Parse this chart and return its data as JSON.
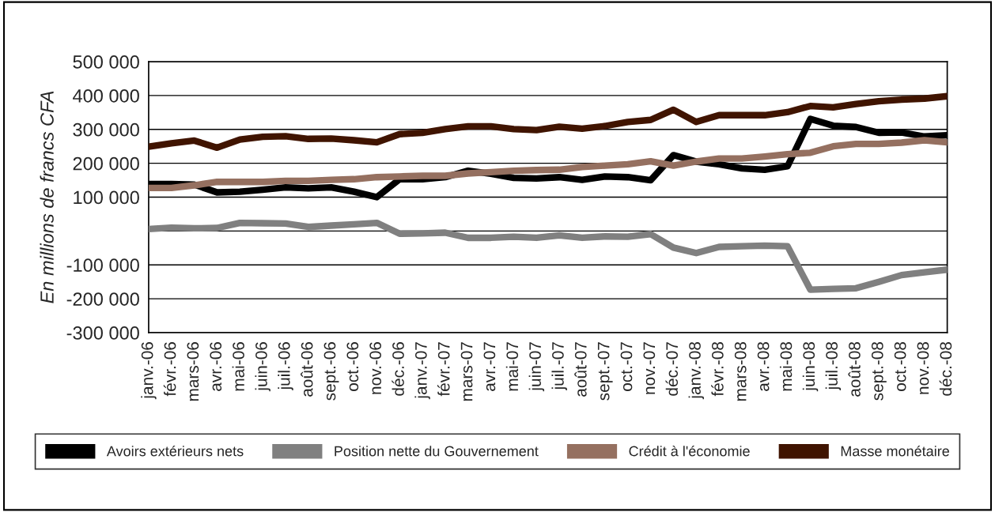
{
  "chart_data": {
    "type": "line",
    "ylabel": "En millions de francs CFA",
    "categories": [
      "janv.-06",
      "févr.-06",
      "mars-06",
      "avr.-06",
      "mai-06",
      "juin-06",
      "juil.-06",
      "août-06",
      "sept.-06",
      "oct.-06",
      "nov.-06",
      "déc.-06",
      "janv.-07",
      "févr.-07",
      "mars-07",
      "avr.-07",
      "mai-07",
      "juin-07",
      "juil.-07",
      "août-07",
      "sept.-07",
      "oct.-07",
      "nov.-07",
      "déc.-07",
      "janv.-08",
      "févr.-08",
      "mars-08",
      "avr.-08",
      "mai-08",
      "juin-08",
      "juil.-08",
      "août-08",
      "sept.-08",
      "oct.-08",
      "nov.-08",
      "déc.-08"
    ],
    "series": [
      {
        "name": "Avoirs extérieurs nets",
        "color": "#000000",
        "values": [
          139000,
          139000,
          137000,
          114000,
          116000,
          122000,
          129000,
          126000,
          129000,
          116000,
          100000,
          153000,
          153000,
          159000,
          178000,
          169000,
          157000,
          155000,
          159000,
          151000,
          161000,
          159000,
          150000,
          224000,
          205000,
          197000,
          185000,
          181000,
          191000,
          331000,
          311000,
          307000,
          290000,
          291000,
          279000,
          283000
        ]
      },
      {
        "name": "Position nette du Gouvernement",
        "color": "#808080",
        "values": [
          6000,
          10000,
          8000,
          9000,
          24000,
          23000,
          22000,
          12000,
          16000,
          20000,
          24000,
          -8000,
          -7000,
          -5000,
          -20000,
          -20000,
          -17000,
          -20000,
          -13000,
          -20000,
          -16000,
          -17000,
          -9000,
          -49000,
          -65000,
          -47000,
          -45000,
          -43000,
          -45000,
          -173000,
          -171000,
          -169000,
          -150000,
          -130000,
          -122000,
          -114000
        ]
      },
      {
        "name": "Crédit à l'économie",
        "color": "#957060",
        "values": [
          127000,
          127000,
          135000,
          145000,
          145000,
          145000,
          148000,
          148000,
          151000,
          153000,
          159000,
          161000,
          163000,
          163000,
          170000,
          174000,
          178000,
          180000,
          181000,
          189000,
          193000,
          197000,
          206000,
          193000,
          205000,
          214000,
          214000,
          220000,
          227000,
          231000,
          250000,
          257000,
          257000,
          261000,
          268000,
          262000
        ]
      },
      {
        "name": "Masse monétaire",
        "color": "#401400",
        "values": [
          249000,
          259000,
          267000,
          246000,
          270000,
          278000,
          280000,
          272000,
          273000,
          268000,
          262000,
          286000,
          290000,
          301000,
          309000,
          309000,
          301000,
          298000,
          308000,
          302000,
          310000,
          322000,
          328000,
          358000,
          322000,
          342000,
          342000,
          342000,
          351000,
          369000,
          365000,
          375000,
          383000,
          388000,
          391000,
          398000
        ]
      }
    ],
    "ylim": [
      -300000,
      500000
    ],
    "yticks": [
      {
        "value": -300000,
        "label": "-300 000"
      },
      {
        "value": -200000,
        "label": "-200 000"
      },
      {
        "value": -100000,
        "label": "-100 000"
      },
      {
        "value": 0,
        "label": null
      },
      {
        "value": 100000,
        "label": "100 000"
      },
      {
        "value": 200000,
        "label": "200 000"
      },
      {
        "value": 300000,
        "label": "300 000"
      },
      {
        "value": 400000,
        "label": "400 000"
      },
      {
        "value": 500000,
        "label": "500 000"
      }
    ],
    "grid": "y",
    "legend": "bottom",
    "marker": "none",
    "line_style": "solid"
  }
}
